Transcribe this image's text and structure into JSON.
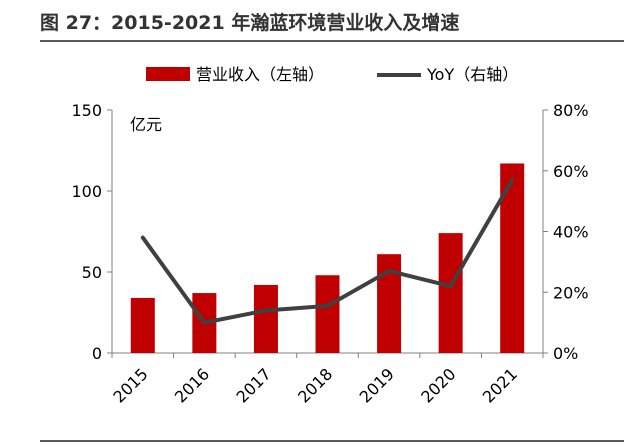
{
  "figure": {
    "title": "图 27：2015-2021 年瀚蓝环境营业收入及增速"
  },
  "colors": {
    "bar": "#C00000",
    "line": "#404040",
    "axis": "#808080",
    "rule": "#595959"
  },
  "chart_data": {
    "type": "bar",
    "title": "图 27：2015-2021 年瀚蓝环境营业收入及增速",
    "categories": [
      "2015",
      "2016",
      "2017",
      "2018",
      "2019",
      "2020",
      "2021"
    ],
    "series": [
      {
        "name": "营业收入（左轴）",
        "type": "bar",
        "axis": "left",
        "values": [
          34,
          37,
          42,
          48,
          61,
          74,
          117
        ]
      },
      {
        "name": "YoY（右轴）",
        "type": "line",
        "axis": "right",
        "values": [
          0.38,
          0.1,
          0.14,
          0.155,
          0.27,
          0.22,
          0.57
        ]
      }
    ],
    "ylabel": "亿元",
    "ylim": [
      0,
      150
    ],
    "yticks": [
      "0",
      "50",
      "100",
      "150"
    ],
    "y2lim": [
      0,
      0.8
    ],
    "y2ticks": [
      "0%",
      "20%",
      "40%",
      "60%",
      "80%"
    ],
    "legend": [
      "营业收入（左轴）",
      "YoY（右轴）"
    ],
    "legend_position": "top",
    "grid": false
  }
}
